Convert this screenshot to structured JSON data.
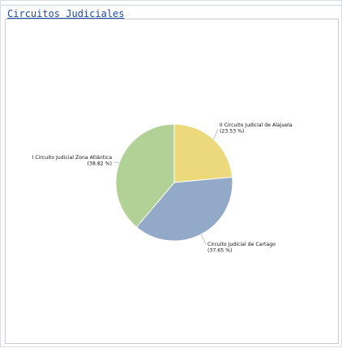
{
  "page": {
    "title": "Circuitos Judiciales"
  },
  "chart_data": {
    "type": "pie",
    "title": "",
    "slices": [
      {
        "name": "II Circuito Judicial de Alajuela",
        "percent": 23.53,
        "percent_label": "(23.53 %)",
        "color": "#ecd97c"
      },
      {
        "name": "Circuito Judicial de Cartago",
        "percent": 37.65,
        "percent_label": "(37.65 %)",
        "color": "#93a9c8"
      },
      {
        "name": "I Circuito Judicial Zona Atlántica",
        "percent": 38.82,
        "percent_label": "(38.82 %)",
        "color": "#b1d196"
      }
    ],
    "start_angle_deg": 0,
    "direction": "clockwise"
  }
}
